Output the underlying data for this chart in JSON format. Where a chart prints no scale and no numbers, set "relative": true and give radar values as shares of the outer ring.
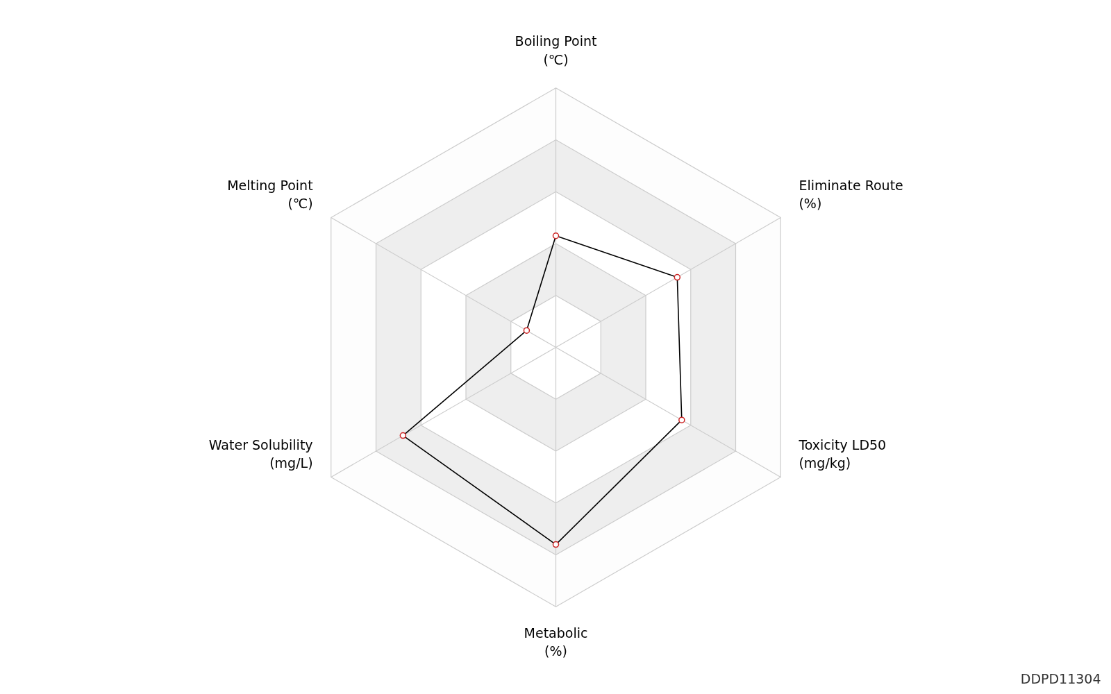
{
  "chart_data": {
    "type": "radar",
    "relative": true,
    "grid": true,
    "marker": "circle",
    "line_style": "solid",
    "categories": [
      "Boiling Point\n(℃)",
      "Eliminate Route\n(%)",
      "Toxicity LD50\n(mg/kg)",
      "Metabolic\n(%)",
      "Water Solubility\n(mg/L)",
      "Melting Point\n(℃)"
    ],
    "series": [
      {
        "color": "#000000",
        "values": [
          0.43,
          0.54,
          0.56,
          0.76,
          0.68,
          0.13
        ]
      }
    ],
    "annotations": [
      "DDPD11304"
    ]
  }
}
